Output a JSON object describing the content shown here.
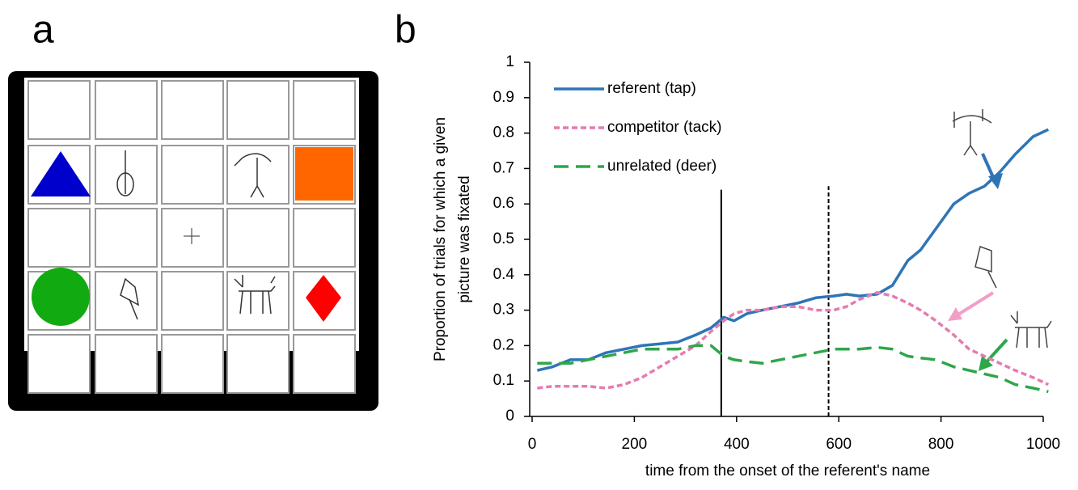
{
  "panel_labels": [
    "a",
    "b"
  ],
  "chart_data": {
    "type": "line",
    "ylabel": [
      "Proportion of trials for which a given",
      "picture was fixated"
    ],
    "xlabel": "time from the onset of the referent's name",
    "x": [
      10,
      40,
      75,
      110,
      145,
      180,
      215,
      250,
      285,
      320,
      350,
      375,
      395,
      420,
      450,
      485,
      520,
      555,
      590,
      615,
      640,
      675,
      705,
      735,
      760,
      790,
      825,
      855,
      885,
      915,
      945,
      980,
      1010
    ],
    "series": [
      {
        "name": "referent (tap)",
        "color": "#2e75b6",
        "dash": "solid",
        "values": [
          0.13,
          0.14,
          0.16,
          0.16,
          0.18,
          0.19,
          0.2,
          0.205,
          0.21,
          0.23,
          0.25,
          0.28,
          0.27,
          0.29,
          0.3,
          0.31,
          0.32,
          0.335,
          0.34,
          0.345,
          0.34,
          0.345,
          0.37,
          0.44,
          0.47,
          0.53,
          0.6,
          0.63,
          0.65,
          0.69,
          0.74,
          0.79,
          0.81
        ]
      },
      {
        "name": "competitor (tack)",
        "color": "#e67bb0",
        "dash": "short",
        "values": [
          0.08,
          0.085,
          0.085,
          0.085,
          0.08,
          0.09,
          0.11,
          0.14,
          0.17,
          0.2,
          0.24,
          0.27,
          0.29,
          0.3,
          0.3,
          0.31,
          0.31,
          0.3,
          0.3,
          0.31,
          0.33,
          0.35,
          0.34,
          0.32,
          0.3,
          0.27,
          0.23,
          0.19,
          0.17,
          0.15,
          0.13,
          0.11,
          0.09
        ]
      },
      {
        "name": "unrelated (deer)",
        "color": "#2ea64a",
        "dash": "long",
        "values": [
          0.15,
          0.15,
          0.15,
          0.16,
          0.17,
          0.18,
          0.19,
          0.19,
          0.19,
          0.2,
          0.2,
          0.17,
          0.16,
          0.155,
          0.15,
          0.16,
          0.17,
          0.18,
          0.19,
          0.19,
          0.19,
          0.195,
          0.19,
          0.17,
          0.165,
          0.16,
          0.14,
          0.13,
          0.12,
          0.11,
          0.09,
          0.08,
          0.07
        ]
      }
    ],
    "vlines": [
      {
        "x": 370,
        "ymax": 0.64,
        "style": "solid"
      },
      {
        "x": 580,
        "ymax": 0.65,
        "style": "dashed"
      }
    ],
    "xlim": [
      0,
      1000
    ],
    "xticks": [
      0,
      200,
      400,
      600,
      800,
      1000
    ],
    "ylim": [
      0,
      1
    ],
    "yticks": [
      0,
      0.1,
      0.2,
      0.3,
      0.4,
      0.5,
      0.6,
      0.7,
      0.8,
      0.9,
      1
    ],
    "grid": false,
    "legend": "upper left"
  }
}
